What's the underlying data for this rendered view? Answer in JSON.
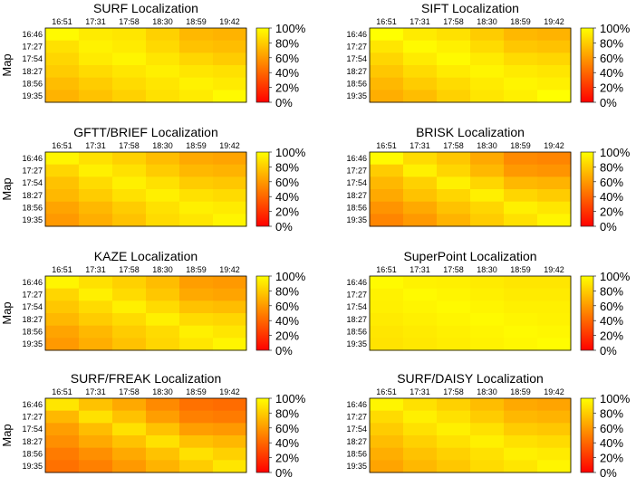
{
  "figure": {
    "x_ticks": [
      "16:51",
      "17:31",
      "17:58",
      "18:30",
      "18:59",
      "19:42"
    ],
    "y_ticks": [
      "16:46",
      "17:27",
      "17:54",
      "18:27",
      "18:56",
      "19:35"
    ],
    "y_label": "Map",
    "colorbar_ticks": [
      "100%",
      "80%",
      "60%",
      "40%",
      "20%",
      "0%"
    ],
    "colormap": {
      "low": "#ff0000",
      "mid": "#ff8000",
      "high": "#ffff00"
    }
  },
  "chart_data": [
    {
      "type": "heatmap",
      "title": "SURF Localization",
      "ylabel": "Map",
      "zlim": [
        0,
        100
      ],
      "values": [
        [
          98,
          92,
          90,
          82,
          72,
          70
        ],
        [
          88,
          95,
          92,
          85,
          76,
          74
        ],
        [
          84,
          92,
          96,
          90,
          84,
          80
        ],
        [
          80,
          86,
          90,
          94,
          90,
          88
        ],
        [
          74,
          80,
          86,
          90,
          95,
          92
        ],
        [
          70,
          76,
          82,
          88,
          92,
          98
        ]
      ]
    },
    {
      "type": "heatmap",
      "title": "SIFT Localization",
      "ylabel": "",
      "zlim": [
        0,
        100
      ],
      "values": [
        [
          100,
          92,
          88,
          80,
          72,
          70
        ],
        [
          90,
          98,
          94,
          86,
          78,
          76
        ],
        [
          84,
          92,
          98,
          92,
          86,
          84
        ],
        [
          78,
          86,
          92,
          96,
          92,
          90
        ],
        [
          72,
          80,
          86,
          92,
          96,
          94
        ],
        [
          68,
          74,
          82,
          90,
          94,
          100
        ]
      ]
    },
    {
      "type": "heatmap",
      "title": "GFTT/BRIEF Localization",
      "ylabel": "Map",
      "zlim": [
        0,
        100
      ],
      "values": [
        [
          96,
          88,
          82,
          74,
          66,
          64
        ],
        [
          84,
          94,
          88,
          80,
          72,
          70
        ],
        [
          76,
          86,
          94,
          88,
          80,
          78
        ],
        [
          72,
          80,
          88,
          94,
          88,
          86
        ],
        [
          64,
          72,
          80,
          88,
          94,
          92
        ],
        [
          60,
          68,
          76,
          86,
          90,
          96
        ]
      ]
    },
    {
      "type": "heatmap",
      "title": "BRISK Localization",
      "ylabel": "",
      "zlim": [
        0,
        100
      ],
      "values": [
        [
          98,
          86,
          78,
          66,
          54,
          52
        ],
        [
          80,
          94,
          84,
          72,
          60,
          58
        ],
        [
          72,
          82,
          94,
          84,
          72,
          70
        ],
        [
          66,
          76,
          84,
          94,
          84,
          80
        ],
        [
          58,
          66,
          76,
          84,
          94,
          90
        ],
        [
          52,
          60,
          70,
          80,
          88,
          96
        ]
      ]
    },
    {
      "type": "heatmap",
      "title": "KAZE Localization",
      "ylabel": "Map",
      "zlim": [
        0,
        100
      ],
      "values": [
        [
          96,
          88,
          82,
          74,
          62,
          60
        ],
        [
          84,
          94,
          86,
          78,
          66,
          64
        ],
        [
          78,
          86,
          94,
          86,
          76,
          74
        ],
        [
          72,
          80,
          86,
          94,
          86,
          84
        ],
        [
          64,
          72,
          80,
          86,
          94,
          90
        ],
        [
          60,
          68,
          76,
          84,
          90,
          96
        ]
      ]
    },
    {
      "type": "heatmap",
      "title": "SuperPoint Localization",
      "ylabel": "",
      "zlim": [
        0,
        100
      ],
      "values": [
        [
          98,
          95,
          94,
          92,
          90,
          90
        ],
        [
          95,
          98,
          96,
          94,
          92,
          92
        ],
        [
          94,
          96,
          98,
          96,
          94,
          94
        ],
        [
          92,
          94,
          96,
          98,
          96,
          95
        ],
        [
          90,
          92,
          94,
          96,
          98,
          97
        ],
        [
          89,
          91,
          93,
          95,
          97,
          99
        ]
      ]
    },
    {
      "type": "heatmap",
      "title": "SURF/FREAK Localization",
      "ylabel": "Map",
      "zlim": [
        0,
        100
      ],
      "values": [
        [
          90,
          76,
          66,
          54,
          44,
          42
        ],
        [
          72,
          88,
          76,
          62,
          50,
          48
        ],
        [
          62,
          74,
          88,
          76,
          62,
          60
        ],
        [
          56,
          66,
          76,
          88,
          76,
          72
        ],
        [
          48,
          56,
          66,
          76,
          88,
          82
        ],
        [
          44,
          50,
          60,
          70,
          80,
          90
        ]
      ]
    },
    {
      "type": "heatmap",
      "title": "SURF/DAISY Localization",
      "ylabel": "",
      "zlim": [
        0,
        100
      ],
      "values": [
        [
          96,
          88,
          82,
          74,
          66,
          64
        ],
        [
          86,
          94,
          88,
          80,
          72,
          70
        ],
        [
          80,
          88,
          94,
          88,
          80,
          78
        ],
        [
          74,
          82,
          88,
          94,
          88,
          86
        ],
        [
          68,
          76,
          82,
          88,
          94,
          92
        ],
        [
          64,
          72,
          78,
          86,
          90,
          96
        ]
      ]
    }
  ]
}
